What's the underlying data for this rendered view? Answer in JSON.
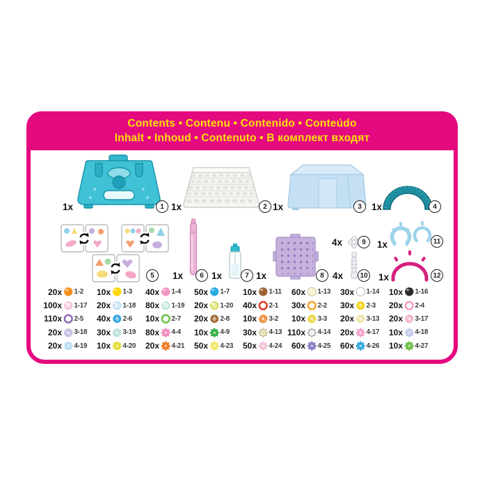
{
  "header": {
    "line1": "Contents • Contenu • Contenido • Conteúdo",
    "line2": "Inhalt • Inhoud • Contenuto • В комплект входят"
  },
  "colors": {
    "brand_magenta": "#E5097F",
    "header_text_yellow": "#FFE10A",
    "case_teal": "#3FC2D6",
    "box_blue": "#C5E0F4",
    "arc_teal": "#1C8E9F",
    "pen_pink": "#ECB5D6",
    "pegboard_purple": "#C7B2DE",
    "ring_blue": "#9ED3EC",
    "band_pink": "#D61F7E"
  },
  "products": [
    {
      "id": 1,
      "qty": "1x",
      "label": "bead case"
    },
    {
      "id": 2,
      "qty": "1x",
      "label": "storage tray"
    },
    {
      "id": 3,
      "qty": "1x",
      "label": "flip case"
    },
    {
      "id": 4,
      "qty": "1x",
      "label": "arc stand"
    },
    {
      "id": 5,
      "qty": "",
      "label": "double-sided template sheets"
    },
    {
      "id": 6,
      "qty": "1x",
      "label": "beading pen"
    },
    {
      "id": 7,
      "qty": "1x",
      "label": "water sprayer"
    },
    {
      "id": 8,
      "qty": "1x",
      "label": "layout pegboard"
    },
    {
      "id": 9,
      "qty": "4x",
      "label": "flower piece"
    },
    {
      "id": 10,
      "qty": "4x",
      "label": "connector piece"
    },
    {
      "id": 11,
      "qty": "1x",
      "label": "display rings"
    },
    {
      "id": 12,
      "qty": "1x",
      "label": "tiara band"
    }
  ],
  "beads": {
    "rows": [
      [
        {
          "qty": "20x",
          "code": "1-2",
          "shape": "round",
          "color": "#F5921E"
        },
        {
          "qty": "10x",
          "code": "1-3",
          "shape": "round",
          "color": "#FFD503"
        },
        {
          "qty": "40x",
          "code": "1-4",
          "shape": "round",
          "color": "#F095C2"
        },
        {
          "qty": "50x",
          "code": "1-7",
          "shape": "round",
          "color": "#29ACE3"
        },
        {
          "qty": "10x",
          "code": "1-11",
          "shape": "round",
          "color": "#9A622F"
        },
        {
          "qty": "60x",
          "code": "1-13",
          "shape": "round",
          "color": "#F8F1D2",
          "stroke": "#C9C39A"
        },
        {
          "qty": "30x",
          "code": "1-14",
          "shape": "round",
          "color": "#FFFFFF",
          "stroke": "#ABABAB"
        },
        {
          "qty": "10x",
          "code": "1-16",
          "shape": "round",
          "color": "#2E2A2B"
        }
      ],
      [
        {
          "qty": "100x",
          "code": "1-17",
          "shape": "soft",
          "color": "#F5C3DB"
        },
        {
          "qty": "20x",
          "code": "1-18",
          "shape": "soft",
          "color": "#BFDFF4"
        },
        {
          "qty": "80x",
          "code": "1-19",
          "shape": "soft",
          "color": "#BCE6DC"
        },
        {
          "qty": "20x",
          "code": "1-20",
          "shape": "soft",
          "color": "#D8DC60"
        },
        {
          "qty": "40x",
          "code": "2-1",
          "shape": "jewel",
          "color": "#E33622"
        },
        {
          "qty": "30x",
          "code": "2-2",
          "shape": "jewel",
          "color": "#F5A02C"
        },
        {
          "qty": "30x",
          "code": "2-3",
          "shape": "jewelsolid",
          "color": "#F5D312"
        },
        {
          "qty": "20x",
          "code": "2-4",
          "shape": "jewel",
          "color": "#F29BC6"
        }
      ],
      [
        {
          "qty": "110x",
          "code": "2-5",
          "shape": "jewel",
          "color": "#8A67B4"
        },
        {
          "qty": "40x",
          "code": "2-6",
          "shape": "jewelsolid",
          "color": "#31A6E0"
        },
        {
          "qty": "10x",
          "code": "2-7",
          "shape": "jewel",
          "color": "#6CBE45"
        },
        {
          "qty": "20x",
          "code": "2-8",
          "shape": "jewelsolid",
          "color": "#A26B38"
        },
        {
          "qty": "10x",
          "code": "3-2",
          "shape": "sparkle",
          "color": "#EE9140"
        },
        {
          "qty": "10x",
          "code": "3-3",
          "shape": "sparkle",
          "color": "#ECD84A"
        },
        {
          "qty": "20x",
          "code": "3-13",
          "shape": "sparkle",
          "color": "#EEE6B2"
        },
        {
          "qty": "20x",
          "code": "3-17",
          "shape": "sparkle",
          "color": "#F2B8D1"
        }
      ],
      [
        {
          "qty": "20x",
          "code": "3-18",
          "shape": "sparkle",
          "color": "#C6BFE4"
        },
        {
          "qty": "30x",
          "code": "3-19",
          "shape": "sparkle",
          "color": "#BCE2DA"
        },
        {
          "qty": "80x",
          "code": "4-4",
          "shape": "flower",
          "color": "#F08CBE"
        },
        {
          "qty": "10x",
          "code": "4-9",
          "shape": "flower",
          "color": "#33B14B"
        },
        {
          "qty": "30x",
          "code": "4-13",
          "shape": "flower",
          "color": "#F3ECC8",
          "stroke": "#C9C39A"
        },
        {
          "qty": "110x",
          "code": "4-14",
          "shape": "flower",
          "color": "#FFFFFF",
          "stroke": "#ABABAB"
        },
        {
          "qty": "20x",
          "code": "4-17",
          "shape": "flower",
          "color": "#F3A3C9"
        },
        {
          "qty": "10x",
          "code": "4-18",
          "shape": "flower",
          "color": "#C2CBE9"
        }
      ],
      [
        {
          "qty": "20x",
          "code": "4-19",
          "shape": "flower",
          "color": "#BCDDF0"
        },
        {
          "qty": "10x",
          "code": "4-20",
          "shape": "flower",
          "color": "#E4DF39"
        },
        {
          "qty": "20x",
          "code": "4-21",
          "shape": "flower",
          "color": "#F07B24"
        },
        {
          "qty": "50x",
          "code": "4-23",
          "shape": "flower",
          "color": "#F0E762"
        },
        {
          "qty": "50x",
          "code": "4-24",
          "shape": "flower",
          "color": "#F5C4DA"
        },
        {
          "qty": "60x",
          "code": "4-25",
          "shape": "flower",
          "color": "#8A7CC4"
        },
        {
          "qty": "60x",
          "code": "4-26",
          "shape": "flower",
          "color": "#34A7E0"
        },
        {
          "qty": "10x",
          "code": "4-27",
          "shape": "flower",
          "color": "#6CBE45"
        }
      ]
    ]
  }
}
